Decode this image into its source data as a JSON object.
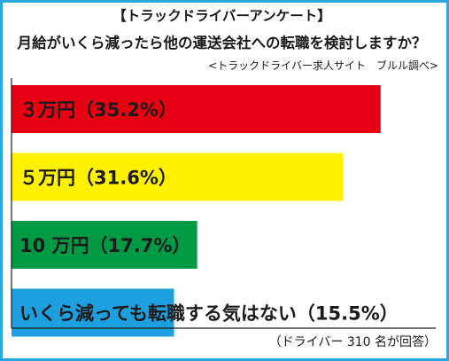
{
  "title": "【トラックドライバーアンケート】",
  "subtitle": "月給がいくら減ったら他の運送会社への転職を検討しますか？",
  "source": "<トラックドライバー求人サイト　ブルル調べ>",
  "footnote": "（ドライバー 310 名が回答）",
  "colors": {
    "frame": "#29a8e0",
    "axis": "#1a1a1a",
    "label_text": "#1a1a1a"
  },
  "chart_data": {
    "type": "bar",
    "orientation": "horizontal",
    "unit": "%",
    "xlim": [
      0,
      40
    ],
    "grid": false,
    "categories": [
      "３万円",
      "５万円",
      "10 万円",
      "いくら減っても転職する気はない"
    ],
    "values": [
      35.2,
      31.6,
      17.7,
      15.5
    ],
    "labels": [
      "３万円（35.2%）",
      "５万円（31.6%）",
      "10 万円（17.7%）",
      "いくら減っても転職する気はない（15.5%）"
    ],
    "bar_colors": [
      "#e60012",
      "#fff100",
      "#009944",
      "#1ea0e0"
    ]
  }
}
